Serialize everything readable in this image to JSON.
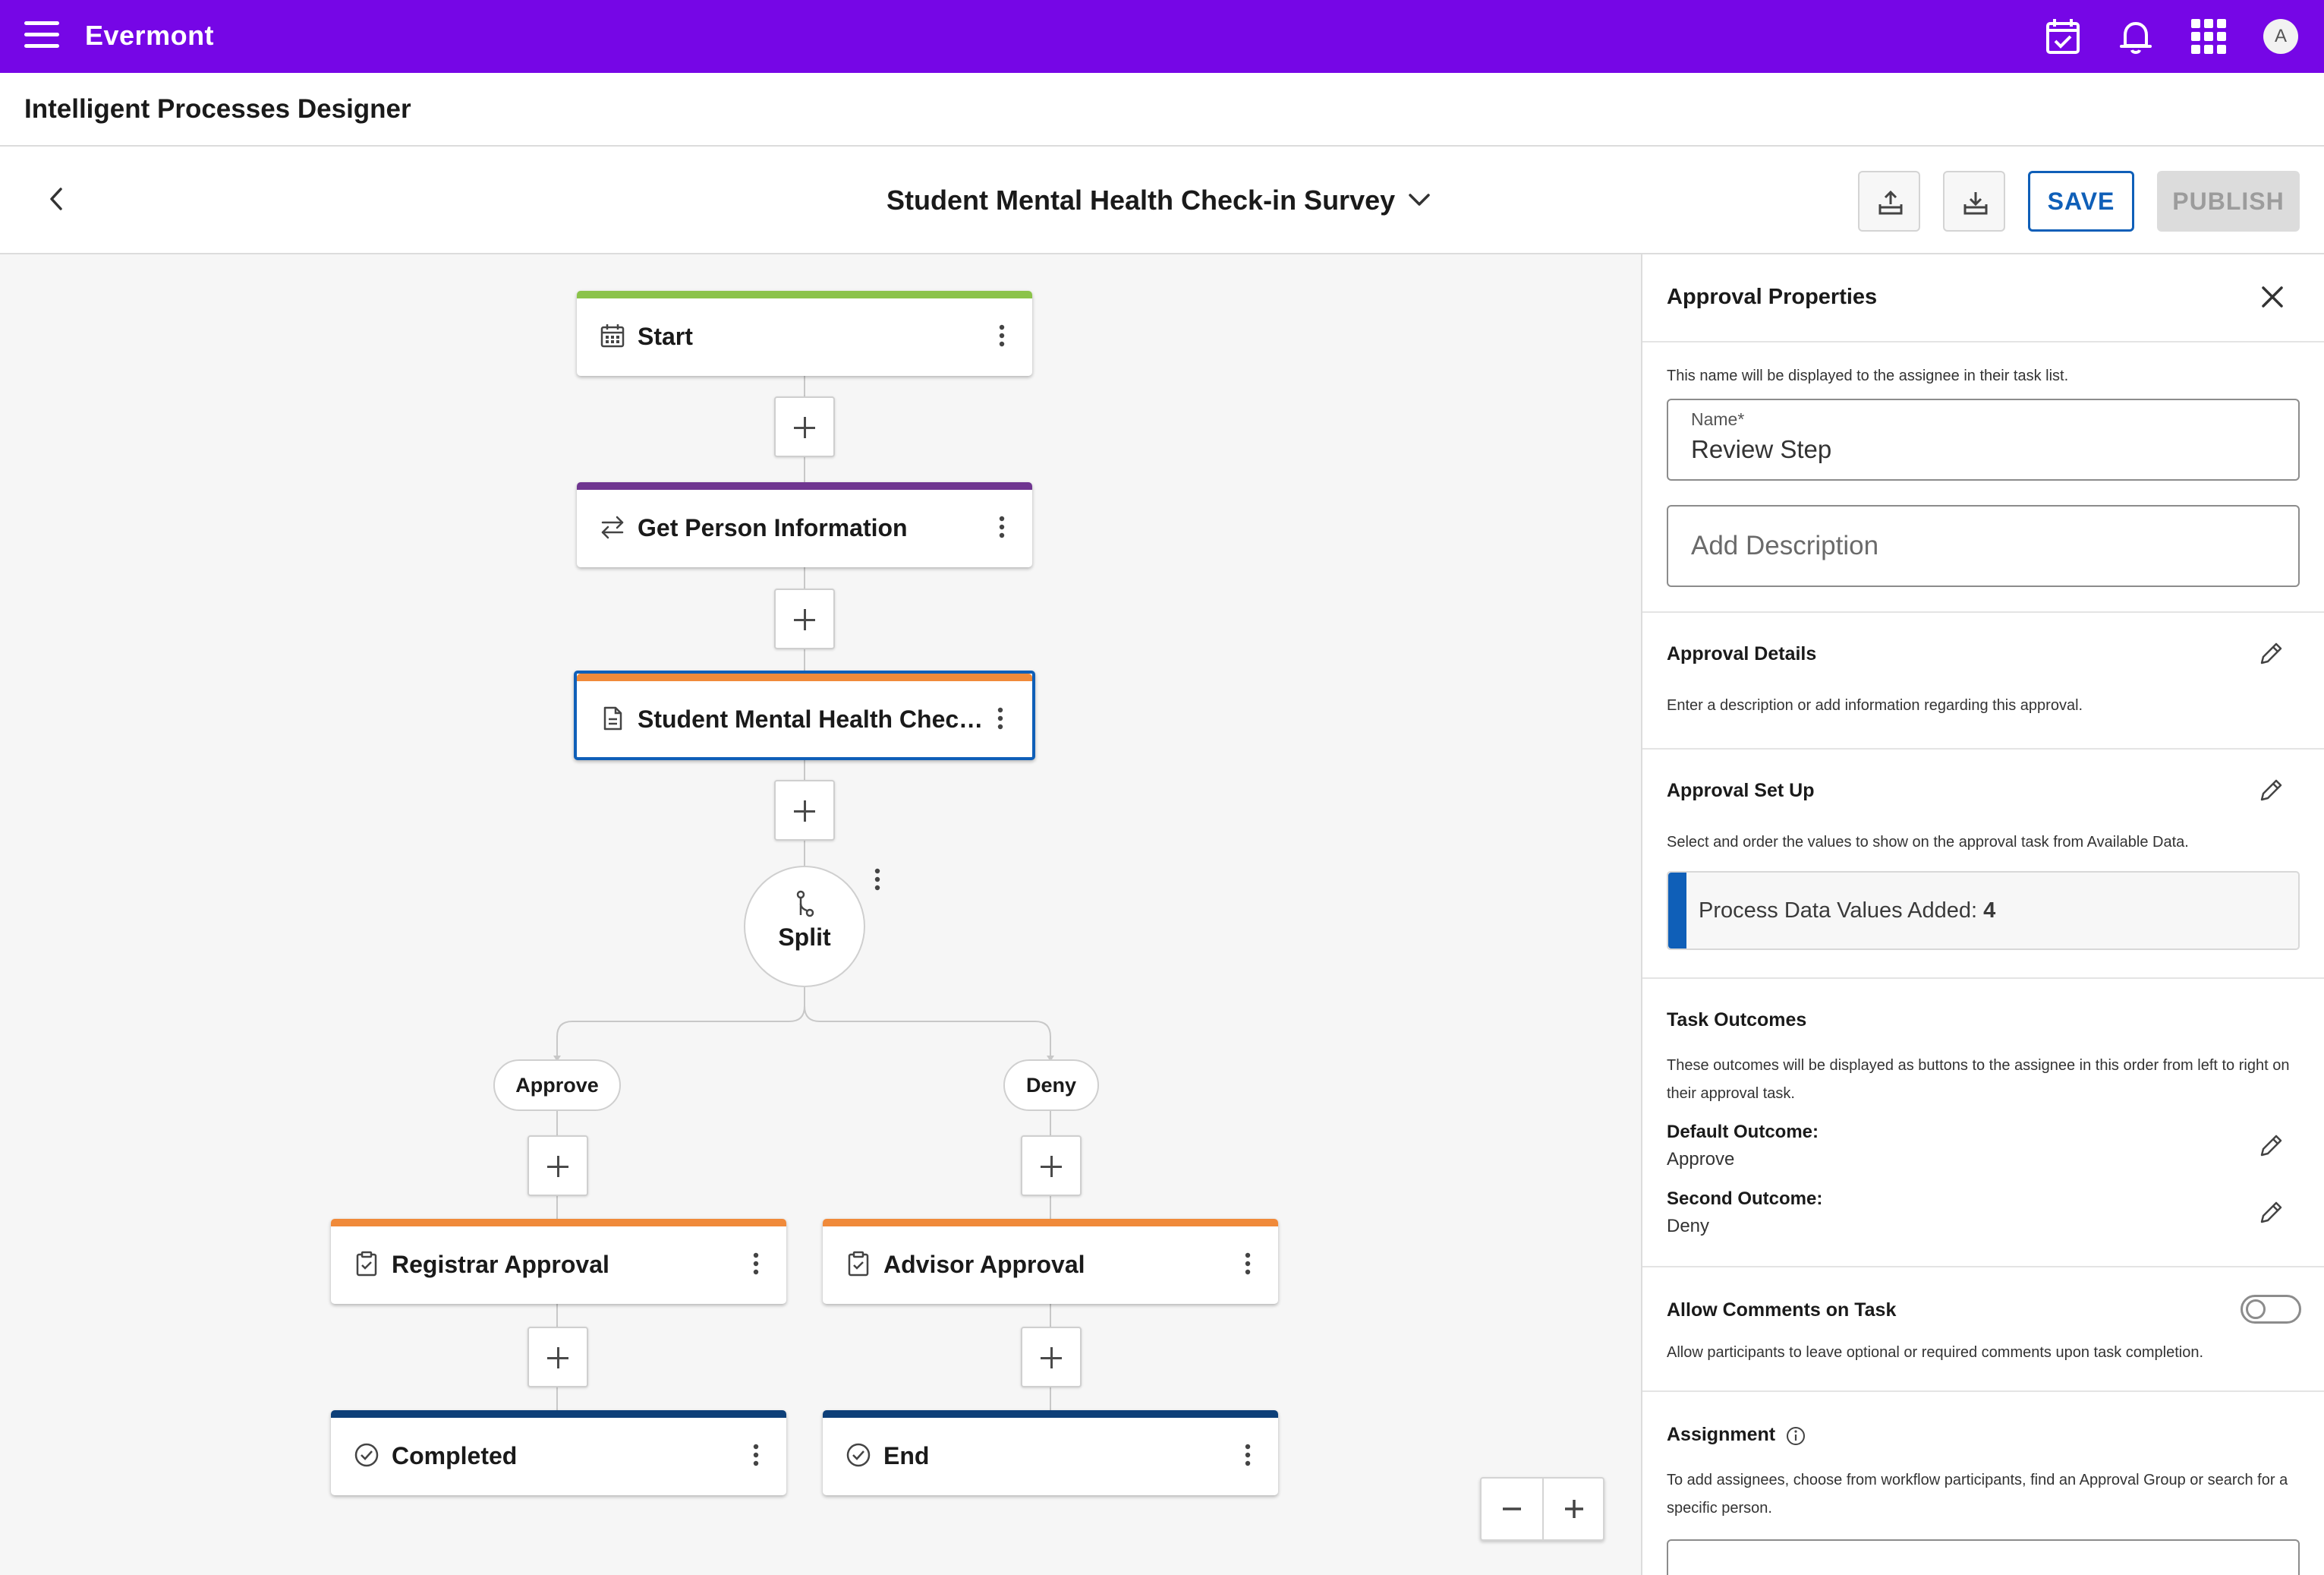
{
  "app": {
    "brand": "Evermont",
    "title": "Intelligent Processes Designer",
    "avatar_letter": "A",
    "accent_color": "#7606e6"
  },
  "toolbar": {
    "process_title": "Student Mental Health Check-in Survey",
    "save_label": "SAVE",
    "publish_label": "PUBLISH"
  },
  "workflow": {
    "nodes": {
      "start": {
        "label": "Start",
        "color": "#8bc34a"
      },
      "get_person": {
        "label": "Get Person Information",
        "color": "#6f3590"
      },
      "survey": {
        "label": "Student Mental Health Check...",
        "color": "#f08a3a"
      },
      "registrar": {
        "label": "Registrar Approval",
        "color": "#f08a3a"
      },
      "advisor": {
        "label": "Advisor Approval",
        "color": "#f08a3a"
      },
      "completed": {
        "label": "Completed",
        "color": "#0d3f78"
      },
      "end": {
        "label": "End",
        "color": "#0d3f78"
      }
    },
    "split_label": "Split",
    "branches": [
      "Approve",
      "Deny"
    ]
  },
  "panel": {
    "title": "Approval Properties",
    "name_hint": "This name will be displayed to the assignee in their task list.",
    "name_label": "Name*",
    "name_value": "Review Step",
    "description_placeholder": "Add Description",
    "approval_details": {
      "title": "Approval Details",
      "text": "Enter a description or add information regarding this approval."
    },
    "approval_setup": {
      "title": "Approval Set Up",
      "text": "Select and order the values to show on the approval task from Available Data.",
      "values_label": "Process Data Values Added:",
      "values_count": "4"
    },
    "task_outcomes": {
      "title": "Task Outcomes",
      "text": "These outcomes will be displayed as buttons to the assignee in this order from left to right on their approval task.",
      "default_label": "Default Outcome:",
      "default_value": "Approve",
      "second_label": "Second Outcome:",
      "second_value": "Deny"
    },
    "comments": {
      "title": "Allow Comments on Task",
      "text": "Allow participants to leave optional or required comments upon task completion.",
      "enabled": false
    },
    "assignment": {
      "title": "Assignment",
      "text": "To add assignees, choose from workflow participants, find an Approval Group or search for a specific person."
    }
  }
}
